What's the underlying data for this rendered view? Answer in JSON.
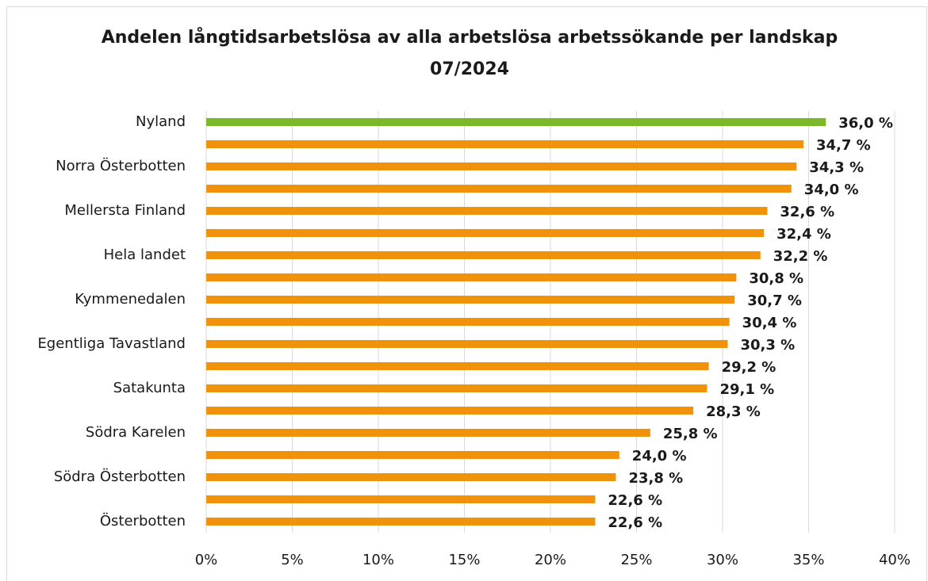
{
  "chart_data": {
    "type": "hbar",
    "title": [
      "Andelen långtidsarbetslösa av alla arbetslösa arbetssökande per landskap",
      "07/2024"
    ],
    "categories": [
      "Nyland",
      null,
      "Norra Österbotten",
      null,
      "Mellersta Finland",
      null,
      "Hela landet",
      null,
      "Kymmenedalen",
      null,
      "Egentliga Tavastland",
      null,
      "Satakunta",
      null,
      "Södra Karelen",
      null,
      "Södra Österbotten",
      null,
      "Österbotten"
    ],
    "values": [
      36.0,
      34.7,
      34.3,
      34.0,
      32.6,
      32.4,
      32.2,
      30.8,
      30.7,
      30.4,
      30.3,
      29.2,
      29.1,
      28.3,
      25.8,
      24.0,
      23.8,
      22.6,
      22.6
    ],
    "value_labels": [
      "36,0 %",
      "34,7 %",
      "34,3 %",
      "34,0 %",
      "32,6 %",
      "32,4 %",
      "32,2 %",
      "30,8 %",
      "30,7 %",
      "30,4 %",
      "30,3 %",
      "29,2 %",
      "29,1 %",
      "28,3 %",
      "25,8 %",
      "24,0 %",
      "23,8 %",
      "22,6 %",
      "22,6 %"
    ],
    "colors": [
      "#7cb92a",
      "#f0920b",
      "#f0920b",
      "#f0920b",
      "#f0920b",
      "#f0920b",
      "#f0920b",
      "#f0920b",
      "#f0920b",
      "#f0920b",
      "#f0920b",
      "#f0920b",
      "#f0920b",
      "#f0920b",
      "#f0920b",
      "#f0920b",
      "#f0920b",
      "#f0920b",
      "#f0920b"
    ],
    "xlim": [
      0,
      40
    ],
    "xticks": [
      {
        "value": 0,
        "label": "0%"
      },
      {
        "value": 5,
        "label": "5%"
      },
      {
        "value": 10,
        "label": "10%"
      },
      {
        "value": 15,
        "label": "15%"
      },
      {
        "value": 20,
        "label": "20%"
      },
      {
        "value": 25,
        "label": "25%"
      },
      {
        "value": 30,
        "label": "30%"
      },
      {
        "value": 35,
        "label": "35%"
      },
      {
        "value": 40,
        "label": "40%"
      }
    ],
    "grid": true
  }
}
